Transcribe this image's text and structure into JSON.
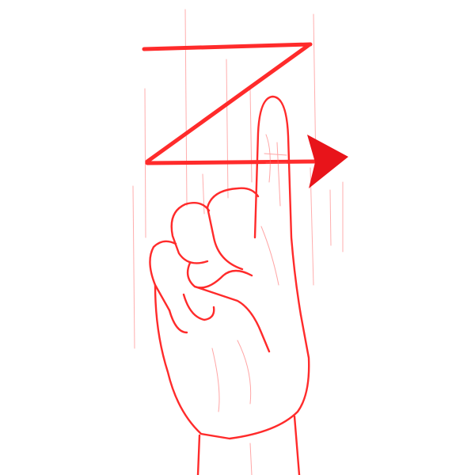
{
  "illustration": {
    "subject": "hand-sign-letter-z",
    "colors": {
      "stroke": "#ff2b2b",
      "stroke_dark": "#e8141a",
      "guide": "#ff6b6b",
      "background": "#ffffff"
    },
    "icons": [
      "hand-index-finger-icon",
      "letter-z-motion-path",
      "arrow-right-icon"
    ]
  }
}
